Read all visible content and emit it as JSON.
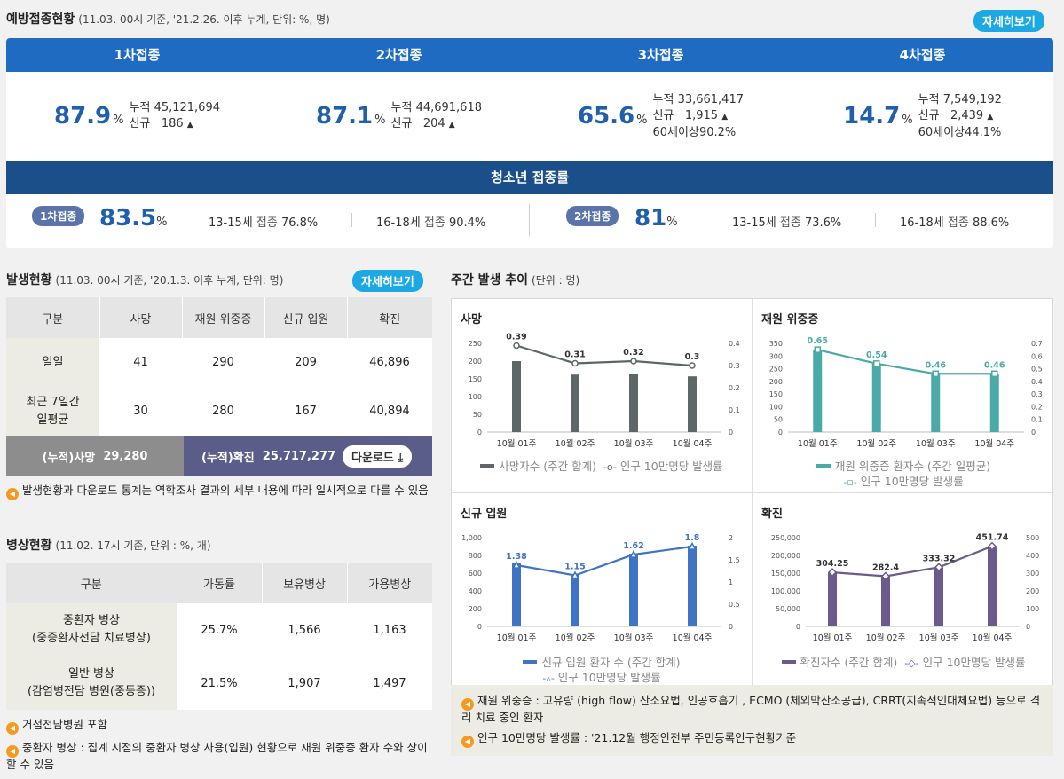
{
  "vaccine": {
    "title": "예방접종현황",
    "subtitle": "(11.03. 00시 기준, '21.2.26. 이후 누계, 단위: %, 명)",
    "detail_button": "자세히보기",
    "doses": [
      {
        "label": "1차접종",
        "rate": "87.9",
        "cum_label": "누적",
        "cum": "45,121,694",
        "new_label": "신규",
        "new": "186",
        "over60_label": "",
        "over60": ""
      },
      {
        "label": "2차접종",
        "rate": "87.1",
        "cum_label": "누적",
        "cum": "44,691,618",
        "new_label": "신규",
        "new": "204",
        "over60_label": "",
        "over60": ""
      },
      {
        "label": "3차접종",
        "rate": "65.6",
        "cum_label": "누적",
        "cum": "33,661,417",
        "new_label": "신규",
        "new": "1,915",
        "over60_label": "60세이상",
        "over60": "90.2%"
      },
      {
        "label": "4차접종",
        "rate": "14.7",
        "cum_label": "누적",
        "cum": "7,549,192",
        "new_label": "신규",
        "new": "2,439",
        "over60_label": "60세이상",
        "over60": "44.1%"
      }
    ],
    "unit": "%",
    "up_glyph": "▲",
    "youth": {
      "title": "청소년 접종률",
      "first": {
        "tag": "1차접종",
        "rate": "83.5",
        "g1": "13-15세",
        "g1_label": "접종",
        "g1_val": "76.8%",
        "g2": "16-18세",
        "g2_label": "접종",
        "g2_val": "90.4%"
      },
      "second": {
        "tag": "2차접종",
        "rate": "81",
        "g1": "13-15세",
        "g1_label": "접종",
        "g1_val": "73.6%",
        "g2": "16-18세",
        "g2_label": "접종",
        "g2_val": "88.6%"
      }
    }
  },
  "occurrence": {
    "title": "발생현황",
    "subtitle": "(11.03. 00시 기준, '20.1.3. 이후 누계, 단위: 명)",
    "detail_button": "자세히보기",
    "headers": [
      "구분",
      "사망",
      "재원 위중증",
      "신규 입원",
      "확진"
    ],
    "rows": [
      {
        "label": "일일",
        "cells": [
          "41",
          "290",
          "209",
          "46,896"
        ]
      },
      {
        "label": "최근 7일간\n일평균",
        "cells": [
          "30",
          "280",
          "167",
          "40,894"
        ]
      }
    ],
    "cum_death_label": "(누적)사망",
    "cum_death": "29,280",
    "cum_conf_label": "(누적)확진",
    "cum_conf": "25,717,277",
    "download": "다운로드",
    "note": "발생현황과 다운로드 통계는 역학조사 결과의 세부 내용에 따라 일시적으로 다를 수 있음"
  },
  "beds": {
    "title": "병상현황",
    "subtitle": "(11.02. 17시 기준, 단위 : %, 개)",
    "headers": [
      "구분",
      "가동률",
      "보유병상",
      "가용병상"
    ],
    "rows": [
      {
        "label": "중환자 병상\n(중증환자전담 치료병상)",
        "cells": [
          "25.7%",
          "1,566",
          "1,163"
        ]
      },
      {
        "label": "일반 병상\n(감염병전담 병원(중등증))",
        "cells": [
          "21.5%",
          "1,907",
          "1,497"
        ]
      }
    ],
    "note1": "거점전담병원 포함",
    "note2": "중환자 병상 : 집계 시점의 중환자 병상 사용(입원) 현황으로 재원 위중증 환자 수와 상이할 수 있음"
  },
  "weekly": {
    "title": "주간 발생 추이",
    "subtitle": "(단위 : 명)",
    "note1": "재원 위중증 : 고유량 (high flow) 산소요법, 인공호흡기 , ECMO (체외막산소공급), CRRT(지속적인대체요법) 등으로 격리 치료 중인 환자",
    "note2": "인구 10만명당 발생률 : '21.12월 행정안전부 주민등록인구현황기준"
  },
  "chart_data": [
    {
      "type": "bar",
      "title": "사망",
      "categories": [
        "10월 01주",
        "10월 02주",
        "10월 03주",
        "10월 04주"
      ],
      "series": [
        {
          "name": "사망자수 (주간 합계)",
          "values": [
            200,
            162,
            165,
            157
          ]
        },
        {
          "name": "인구 10만명당 발생률",
          "type": "line",
          "values": [
            0.39,
            0.31,
            0.32,
            0.3
          ]
        }
      ],
      "ylim": [
        0,
        250
      ],
      "yticks": [
        0,
        50,
        100,
        150,
        200,
        250
      ],
      "y2lim": [
        0,
        0.4
      ],
      "y2ticks": [
        0,
        0.1,
        0.2,
        0.3,
        0.4
      ],
      "bar_color": "#5e6668",
      "line_color": "#5e6668",
      "marker": "circle"
    },
    {
      "type": "bar",
      "title": "재원 위중증",
      "categories": [
        "10월 01주",
        "10월 02주",
        "10월 03주",
        "10월 04주"
      ],
      "series": [
        {
          "name": "재원 위중증 환자수 (주간 일평균)",
          "values": [
            325,
            270,
            230,
            230
          ]
        },
        {
          "name": "인구 10만명당 발생률",
          "type": "line",
          "values": [
            0.65,
            0.54,
            0.46,
            0.46
          ]
        }
      ],
      "ylim": [
        0,
        350
      ],
      "yticks": [
        0,
        50,
        100,
        150,
        200,
        250,
        300,
        350
      ],
      "y2lim": [
        0,
        0.7
      ],
      "y2ticks": [
        0,
        0.1,
        0.2,
        0.3,
        0.4,
        0.5,
        0.6,
        0.7
      ],
      "bar_color": "#4ba9a8",
      "line_color": "#4ba9a8",
      "marker": "square"
    },
    {
      "type": "bar",
      "title": "신규 입원",
      "categories": [
        "10월 01주",
        "10월 02주",
        "10월 03주",
        "10월 04주"
      ],
      "series": [
        {
          "name": "신규 입원 환자 수 (주간 합계)",
          "values": [
            710,
            590,
            820,
            910
          ]
        },
        {
          "name": "인구 10만명당 발생률",
          "type": "line",
          "values": [
            1.38,
            1.15,
            1.62,
            1.8
          ]
        }
      ],
      "ylim": [
        0,
        1000
      ],
      "yticks": [
        0,
        200,
        400,
        600,
        800,
        1000
      ],
      "ytick_labels": [
        "0",
        "200",
        "400",
        "600",
        "800",
        "1,000"
      ],
      "y2lim": [
        0,
        2
      ],
      "y2ticks": [
        0,
        0.5,
        1,
        1.5,
        2
      ],
      "bar_color": "#3f74c5",
      "line_color": "#3f74c5",
      "marker": "triangle"
    },
    {
      "type": "bar",
      "title": "확진",
      "categories": [
        "10월 01주",
        "10월 02주",
        "10월 03주",
        "10월 04주"
      ],
      "series": [
        {
          "name": "확진자수 (주간 합계)",
          "values": [
            152000,
            141000,
            166000,
            225000
          ]
        },
        {
          "name": "인구 10만명당 발생률",
          "type": "line",
          "values": [
            304.25,
            282.4,
            333.32,
            451.74
          ]
        }
      ],
      "ylim": [
        0,
        250000
      ],
      "yticks": [
        0,
        50000,
        100000,
        150000,
        200000,
        250000
      ],
      "ytick_labels": [
        "0",
        "50,000",
        "100,000",
        "150,000",
        "200,000",
        "250,000"
      ],
      "y2lim": [
        0,
        500
      ],
      "y2ticks": [
        0,
        100,
        200,
        300,
        400,
        500
      ],
      "bar_color": "#6a5a8e",
      "line_color": "#6a5a8e",
      "marker": "diamond"
    }
  ]
}
